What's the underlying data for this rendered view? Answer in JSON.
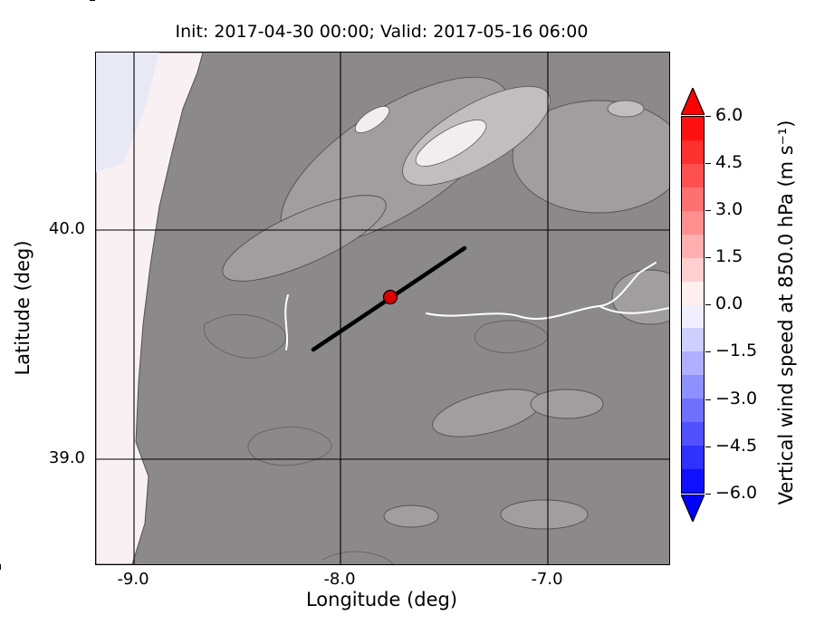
{
  "figure": {
    "title": "Init: 2017-04-30 00:00; Valid: 2017-05-16 06:00",
    "xlabel": "Longitude (deg)",
    "ylabel": "Latitude (deg)",
    "x_tick_labels": [
      "-9.0",
      "-8.0",
      "-7.0"
    ],
    "y_tick_labels": [
      "40.0",
      "39.0"
    ]
  },
  "colorbar": {
    "label": "Vertical wind speed at 850.0 hPa (m s⁻¹)",
    "tick_labels": [
      "6.0",
      "4.5",
      "3.0",
      "1.5",
      "0.0",
      "−1.5",
      "−3.0",
      "−4.5",
      "−6.0"
    ],
    "over_color": "#ff0000",
    "under_color": "#0000ff",
    "segment_colors": [
      "#ff1010",
      "#ff3030",
      "#ff5050",
      "#ff7070",
      "#ff8f8f",
      "#ffafaf",
      "#ffcfcf",
      "#ffefef",
      "#efefff",
      "#cfcfff",
      "#afafff",
      "#8f8fff",
      "#7070ff",
      "#5050ff",
      "#3030ff",
      "#1010ff"
    ]
  },
  "map": {
    "colors": {
      "land": "#8b898a",
      "land_light": "#a09e9f",
      "land_lighter": "#c0bebf",
      "peak": "#f0eeee",
      "ocean": "#f8f0f2",
      "ocean_cool": "#e9e8f5",
      "contour": "#525052",
      "river": "#ffffff",
      "grid": "#000000",
      "cross_section": "#000000",
      "marker": "#dd0000"
    }
  },
  "chart_data": {
    "type": "heatmap",
    "title": "Init: 2017-04-30 00:00; Valid: 2017-05-16 06:00",
    "xlabel": "Longitude (deg)",
    "ylabel": "Latitude (deg)",
    "xlim": [
      -9.2,
      -6.4
    ],
    "ylim": [
      38.55,
      40.78
    ],
    "x_ticks": [
      -9.0,
      -8.0,
      -7.0
    ],
    "y_ticks": [
      39.0,
      40.0
    ],
    "grid": true,
    "variable": "Vertical wind speed at 850.0 hPa",
    "units": "m s-1",
    "colorbar_ticks": [
      6.0,
      4.5,
      3.0,
      1.5,
      0.0,
      -1.5,
      -3.0,
      -4.5,
      -6.0
    ],
    "value_range_shown": [
      -6.0,
      6.0
    ],
    "colormap": "blue-white-red diverging, discrete steps of 0.75, extended with arrows on both ends",
    "field_summary": "Vertical wind speed is near 0 m/s over the whole domain; faintly positive (pale pink) over the Atlantic coastal strip in the west and faintly negative (pale lavender) at the top-left; inland the field is overlaid on gray shaded-relief terrain with lighter high ground in the north-center (mountain ridge) and white river valleys",
    "overlays": {
      "cross_section_line": {
        "from_lonlat": [
          -8.13,
          39.48
        ],
        "to_lonlat": [
          -7.4,
          39.92
        ]
      },
      "point_marker": {
        "lon": -7.76,
        "lat": 39.7,
        "color": "#dd0000"
      }
    }
  }
}
